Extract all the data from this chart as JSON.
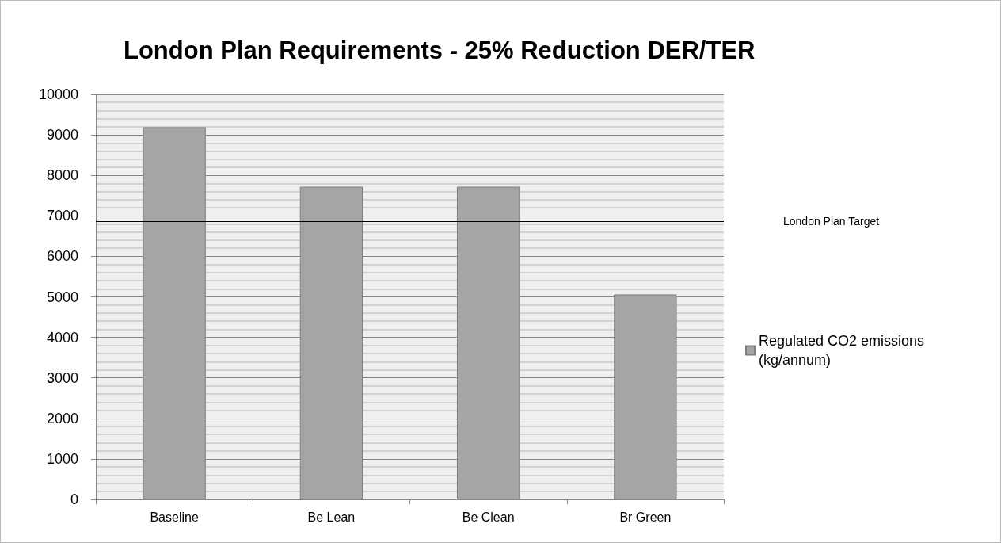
{
  "chart_data": {
    "type": "bar",
    "title": "London Plan Requirements - 25% Reduction DER/TER",
    "categories": [
      "Baseline",
      "Be Lean",
      "Be Clean",
      "Br Green"
    ],
    "series": [
      {
        "name": "Regulated CO2 emissions (kg/annum)",
        "color": "#a5a5a5",
        "values": [
          9190,
          7720,
          7720,
          5060
        ]
      }
    ],
    "ylim": [
      0,
      10000
    ],
    "yticks": [
      0,
      1000,
      2000,
      3000,
      4000,
      5000,
      6000,
      7000,
      8000,
      9000,
      10000
    ],
    "ref_lines": [
      {
        "axis": "y",
        "value": 6860,
        "label": "London Plan Target",
        "color": "#000000",
        "line_style": "solid"
      }
    ],
    "grid": "y",
    "legend": "right"
  }
}
